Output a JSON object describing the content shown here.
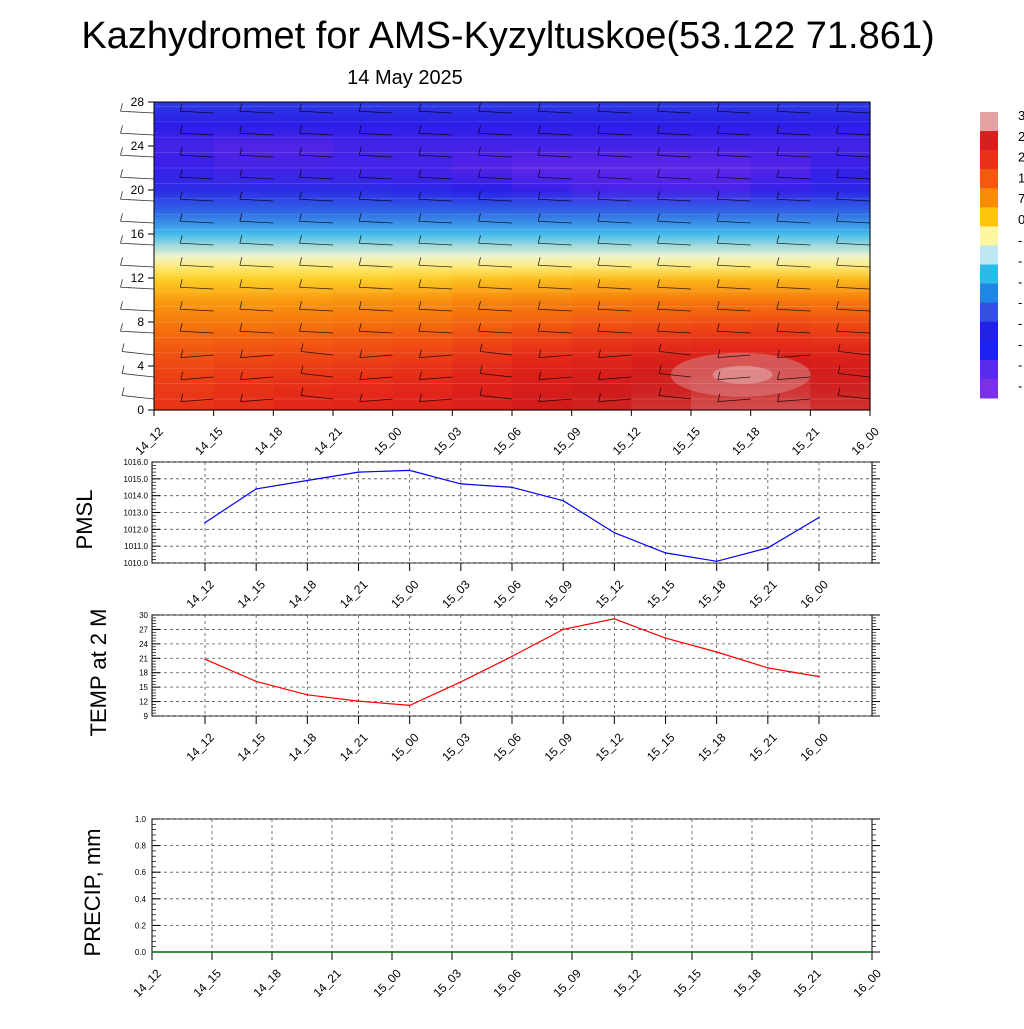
{
  "header": {
    "title": "Kazhydromet for AMS-Kyzyltuskoe(53.122 71.861)",
    "date": "14 May 2025"
  },
  "time_labels": [
    "14_12",
    "14_15",
    "14_18",
    "14_21",
    "15_00",
    "15_03",
    "15_06",
    "15_09",
    "15_12",
    "15_15",
    "15_18",
    "15_21",
    "16_00"
  ],
  "colors": {
    "pressure_line": "#0000ff",
    "temperature_line": "#ff0000",
    "precip_line": "#006400",
    "grid": "#555555"
  },
  "colorbar": {
    "labels": [
      "3",
      "2",
      "2",
      "1",
      "7",
      "0",
      "-",
      "-",
      "-",
      "-",
      "-",
      "-",
      "-",
      "-"
    ],
    "colors": [
      "#e3a3a3",
      "#d61f1f",
      "#e8321a",
      "#f25a0d",
      "#fb8a08",
      "#fdc40b",
      "#fff7a0",
      "#bde6f2",
      "#2bbbe8",
      "#1e86e6",
      "#3550e0",
      "#2222e4",
      "#1c22f0",
      "#5a2bea",
      "#7c30e6"
    ]
  },
  "chart_data": [
    {
      "type": "heatmap",
      "title": "",
      "x": [
        "14_12",
        "14_15",
        "14_18",
        "14_21",
        "15_00",
        "15_03",
        "15_06",
        "15_09",
        "15_12",
        "15_15",
        "15_18",
        "15_21",
        "16_00"
      ],
      "ylim": [
        0,
        28
      ],
      "yticks": [
        0,
        4,
        8,
        12,
        16,
        20,
        24,
        28
      ],
      "ylabel": "",
      "overlay": "wind barbs",
      "y_levels": [
        0,
        2,
        4,
        6,
        8,
        10,
        12,
        13,
        14,
        16,
        18,
        20,
        22,
        24,
        26,
        28
      ],
      "values": [
        [
          19,
          20,
          21,
          22,
          22,
          23,
          25,
          26,
          27,
          28,
          29,
          28,
          27
        ],
        [
          18,
          19,
          20,
          21,
          21,
          22,
          24,
          25,
          26,
          27,
          28,
          27,
          26
        ],
        [
          16,
          17,
          18,
          18,
          19,
          20,
          22,
          23,
          24,
          25,
          26,
          25,
          24
        ],
        [
          13,
          14,
          14,
          15,
          15,
          16,
          18,
          19,
          20,
          21,
          21,
          21,
          20
        ],
        [
          10,
          10,
          10,
          11,
          11,
          12,
          13,
          14,
          15,
          15,
          16,
          16,
          15
        ],
        [
          6,
          6,
          6,
          7,
          7,
          8,
          9,
          9,
          10,
          10,
          10,
          10,
          10
        ],
        [
          1,
          1,
          1,
          1,
          1,
          2,
          2,
          3,
          3,
          3,
          3,
          3,
          3
        ],
        [
          -1,
          -1,
          -1,
          -1,
          -1,
          -1,
          -1,
          -1,
          -1,
          -1,
          -1,
          -1,
          -1
        ],
        [
          -4,
          -4,
          -4,
          -4,
          -4,
          -4,
          -4,
          -4,
          -4,
          -4,
          -4,
          -4,
          -4
        ],
        [
          -10,
          -10,
          -10,
          -10,
          -10,
          -10,
          -10,
          -10,
          -10,
          -10,
          -10,
          -10,
          -10
        ],
        [
          -16,
          -16,
          -16,
          -16,
          -16,
          -16,
          -16,
          -16,
          -16,
          -16,
          -16,
          -16,
          -16
        ],
        [
          -20,
          -20,
          -20,
          -20,
          -20,
          -21,
          -21,
          -22,
          -22,
          -22,
          -22,
          -21,
          -20
        ],
        [
          -21,
          -22,
          -22,
          -22,
          -22,
          -22,
          -23,
          -23,
          -23,
          -23,
          -23,
          -22,
          -21
        ],
        [
          -22,
          -22,
          -23,
          -22,
          -22,
          -22,
          -22,
          -22,
          -22,
          -22,
          -22,
          -22,
          -22
        ],
        [
          -21,
          -21,
          -21,
          -21,
          -21,
          -21,
          -21,
          -21,
          -21,
          -21,
          -21,
          -21,
          -21
        ],
        [
          -19,
          -19,
          -19,
          -19,
          -19,
          -19,
          -19,
          -19,
          -19,
          -19,
          -19,
          -19,
          -19
        ]
      ],
      "color_range": [
        -24,
        30
      ]
    },
    {
      "type": "line",
      "ylabel": "PMSL",
      "x": [
        "14_12",
        "14_15",
        "14_18",
        "14_21",
        "15_00",
        "15_03",
        "15_06",
        "15_09",
        "15_12",
        "15_15",
        "15_18",
        "15_21",
        "16_00"
      ],
      "ylim": [
        1010.0,
        1016.0
      ],
      "yticks": [
        "1010.0",
        "1011.0",
        "1012.0",
        "1013.0",
        "1014.0",
        "1015.0",
        "1016.0"
      ],
      "grid": true,
      "series": [
        {
          "values": [
            1012.4,
            1014.4,
            1014.9,
            1015.4,
            1015.5,
            1014.7,
            1014.5,
            1013.7,
            1011.8,
            1010.6,
            1010.1,
            1010.9,
            1012.7
          ]
        }
      ]
    },
    {
      "type": "line",
      "ylabel": "TEMP at 2 M",
      "x": [
        "14_12",
        "14_15",
        "14_18",
        "14_21",
        "15_00",
        "15_03",
        "15_06",
        "15_09",
        "15_12",
        "15_15",
        "15_18",
        "15_21",
        "16_00"
      ],
      "ylim": [
        9,
        30
      ],
      "yticks": [
        "9",
        "12",
        "15",
        "18",
        "21",
        "24",
        "27",
        "30"
      ],
      "grid": true,
      "series": [
        {
          "values": [
            20.8,
            16.2,
            13.4,
            12.1,
            11.2,
            16.1,
            21.4,
            27.0,
            29.2,
            25.2,
            22.3,
            19.0,
            17.2
          ]
        }
      ]
    },
    {
      "type": "line",
      "ylabel": "PRECIP, mm",
      "x": [
        "14_12",
        "14_15",
        "14_18",
        "14_21",
        "15_00",
        "15_03",
        "15_06",
        "15_09",
        "15_12",
        "15_15",
        "15_18",
        "15_21",
        "16_00"
      ],
      "ylim": [
        0.0,
        1.0
      ],
      "yticks": [
        "0.0",
        "0.2",
        "0.4",
        "0.6",
        "0.8",
        "1.0"
      ],
      "grid": true,
      "series": [
        {
          "values": [
            0,
            0,
            0,
            0,
            0,
            0,
            0,
            0,
            0,
            0,
            0,
            0,
            0
          ]
        }
      ]
    }
  ]
}
